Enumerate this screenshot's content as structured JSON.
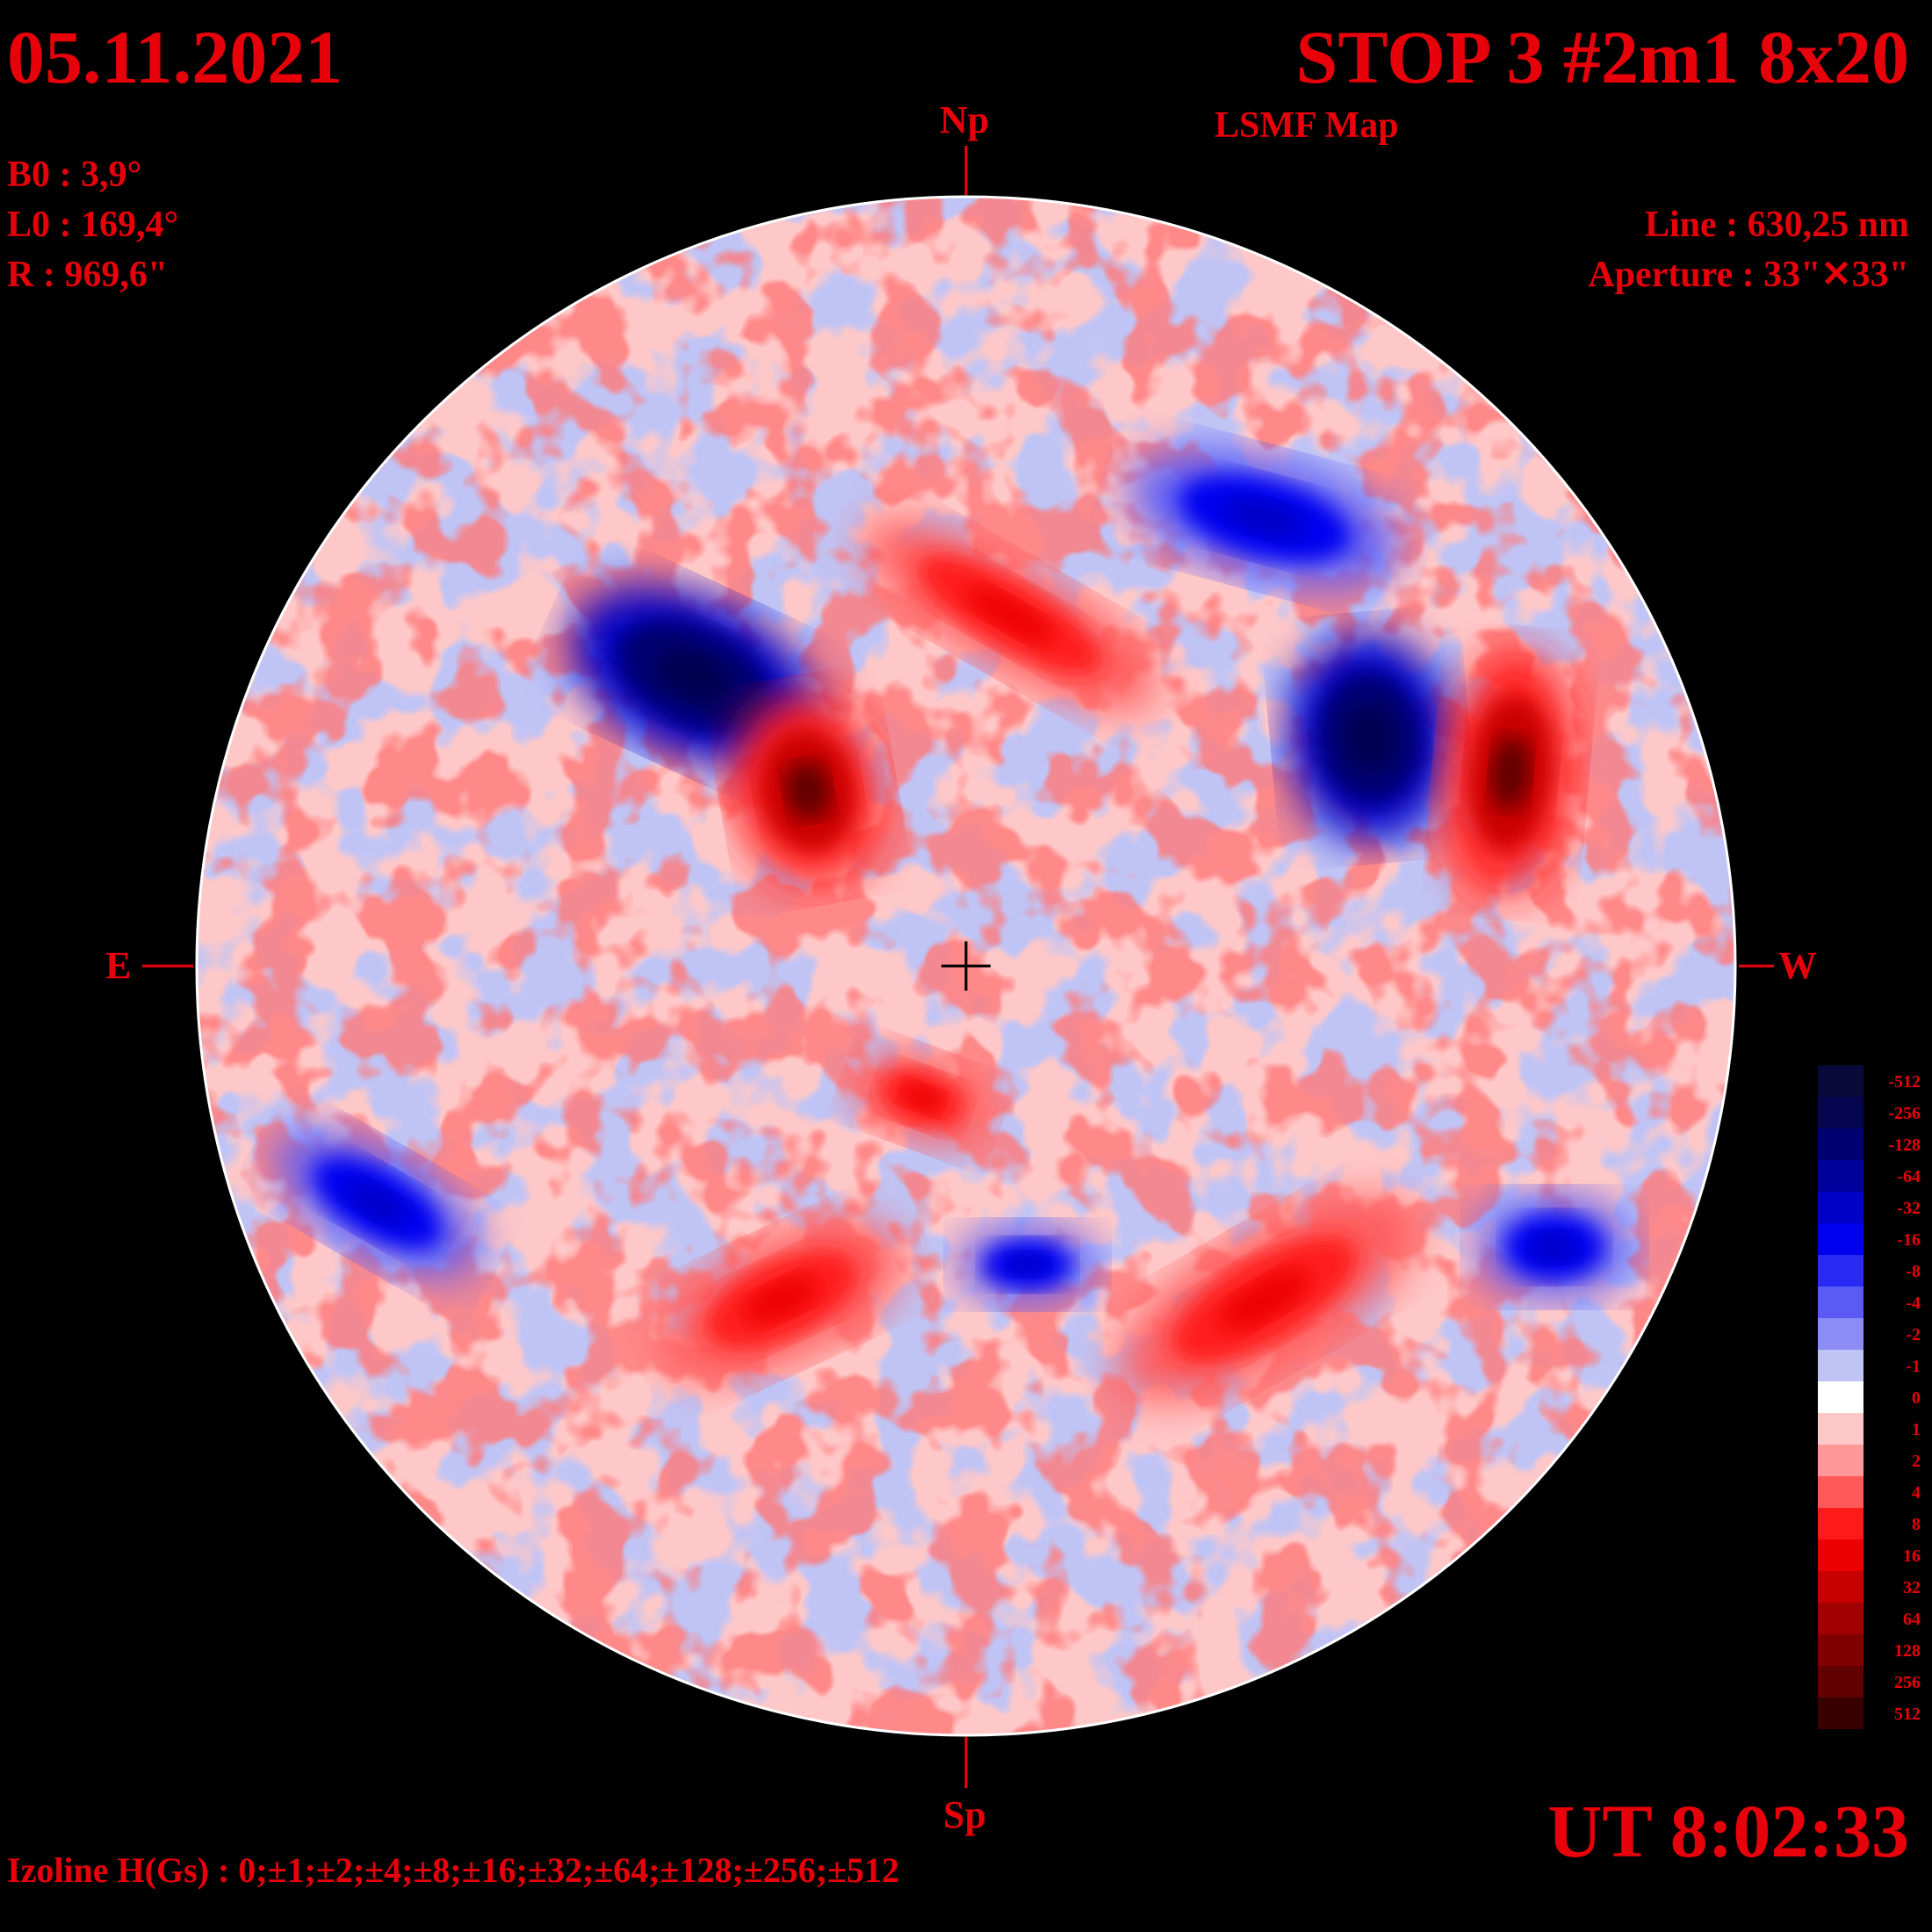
{
  "date": "05.11.2021",
  "title": "STOP 3 #2m1 8x20",
  "subtitle": "LSMF  Map",
  "ephemeris": {
    "b0": "B0 : 3,9°",
    "l0": "L0 : 169,4°",
    "r": "R  : 969,6\""
  },
  "instrument": {
    "line": "Line :  630,25 nm",
    "aperture": "Aperture : 33\"✕33\""
  },
  "directions": {
    "north": "Np",
    "south": "Sp",
    "east": "E",
    "west": "W"
  },
  "time": "UT 8:02:33",
  "izoline": "Izoline H(Gs) : 0;±1;±2;±4;±8;±16;±32;±64;±128;±256;±512",
  "legend": {
    "labels": [
      "-512",
      "-256",
      "-128",
      "-64",
      "-32",
      "-16",
      "-8",
      "-4",
      "-2",
      "-1",
      "0",
      "1",
      "2",
      "4",
      "8",
      "16",
      "32",
      "64",
      "128",
      "256",
      "512"
    ],
    "colors": [
      "#0a0a3a",
      "#050550",
      "#000070",
      "#00009a",
      "#0000c8",
      "#0000f0",
      "#2a2af5",
      "#5a5af5",
      "#8c8cf5",
      "#c0c4f5",
      "#ffffff",
      "#ffc8c8",
      "#ff9898",
      "#ff5a5a",
      "#ff1a1a",
      "#ee0000",
      "#c80000",
      "#a00000",
      "#800000",
      "#600000",
      "#3a0000"
    ]
  },
  "features": [
    {
      "polarity": "negative",
      "kind": "strong"
    },
    {
      "polarity": "positive",
      "kind": "strong"
    },
    {
      "polarity": "negative",
      "kind": "strong"
    },
    {
      "polarity": "positive",
      "kind": "strong"
    },
    {
      "polarity": "negative",
      "kind": "medium"
    },
    {
      "polarity": "positive",
      "kind": "medium"
    },
    {
      "polarity": "negative",
      "kind": "medium"
    },
    {
      "polarity": "positive",
      "kind": "medium"
    },
    {
      "polarity": "negative",
      "kind": "medium"
    },
    {
      "polarity": "positive",
      "kind": "medium"
    },
    {
      "polarity": "negative",
      "kind": "medium"
    },
    {
      "polarity": "positive",
      "kind": "medium"
    }
  ]
}
